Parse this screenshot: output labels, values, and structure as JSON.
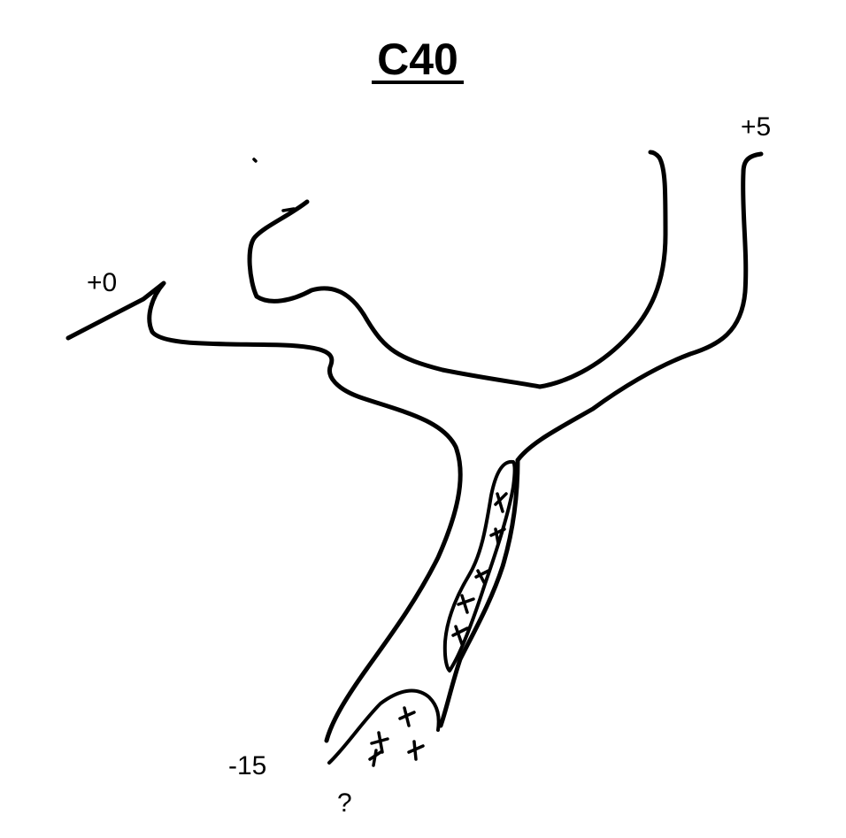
{
  "title": "C40",
  "depth_labels": {
    "entrance_left": "+0",
    "entrance_right": "+5",
    "bottom": "-15"
  },
  "unknown_marker": "?",
  "colors": {
    "ink": "#000000",
    "background": "#ffffff"
  }
}
